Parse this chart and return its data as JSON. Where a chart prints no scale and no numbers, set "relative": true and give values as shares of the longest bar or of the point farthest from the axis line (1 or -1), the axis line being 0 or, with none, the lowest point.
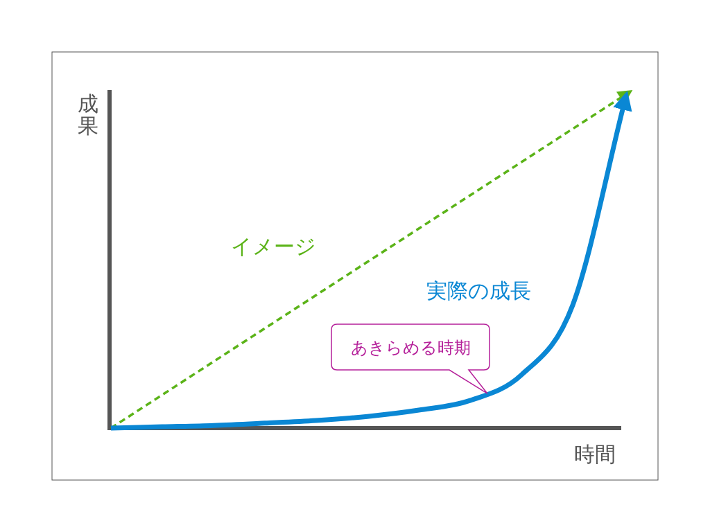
{
  "chart_data": {
    "type": "line",
    "relative": true,
    "xlabel": "時間",
    "ylabel": "成果",
    "categories": [
      null,
      null,
      null,
      null,
      null,
      null,
      null,
      null,
      null,
      null,
      null
    ],
    "legend": false,
    "grid": false,
    "marker": "none",
    "annotations": [
      "あきらめる時期"
    ],
    "series": [
      {
        "name": "イメージ",
        "color": "#5bb318",
        "line_style": "dashed",
        "values": [
          0,
          0.1,
          0.2,
          0.3,
          0.4,
          0.5,
          0.6,
          0.7,
          0.8,
          0.9,
          1
        ]
      },
      {
        "name": "実際の成長",
        "color": "#0a87d4",
        "line_style": "solid",
        "values": [
          0,
          0.004,
          0.008,
          0.015,
          0.023,
          0.035,
          0.054,
          0.083,
          0.16,
          0.37,
          0.975
        ]
      }
    ]
  }
}
